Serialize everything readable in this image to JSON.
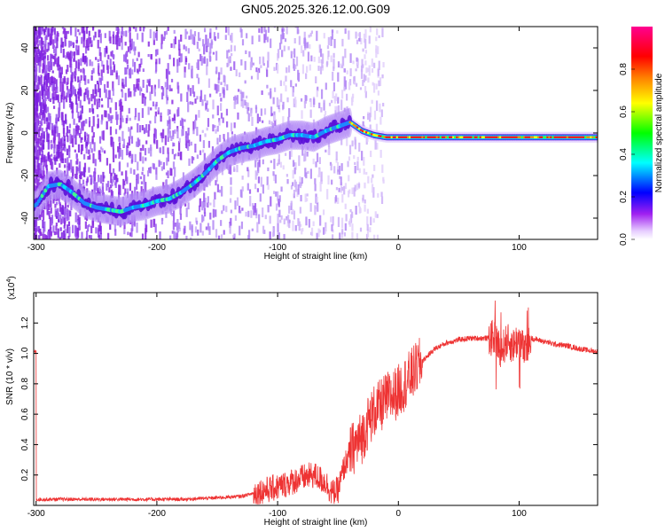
{
  "title": "GN05.2025.326.12.00.G09",
  "colors": {
    "scatter": "#7b1fe0",
    "scatter_light": "#c9a6f5",
    "snr_line": "#ee3333",
    "colorbar": [
      "#ffffff",
      "#a020f0",
      "#0000ff",
      "#00ffff",
      "#00ff00",
      "#ffff00",
      "#ff8000",
      "#ff0000",
      "#ff00a0"
    ]
  },
  "chart_data": [
    {
      "type": "heatmap",
      "title": "GN05.2025.326.12.00.G09",
      "xlabel": "Height of straight line (km)",
      "ylabel": "Frequency (Hz)",
      "xlim": [
        -302,
        165
      ],
      "ylim": [
        -50,
        50
      ],
      "xticks": [
        "-300",
        "-200",
        "-100",
        "0",
        "100"
      ],
      "xtick_values": [
        -300,
        -200,
        -100,
        0,
        100
      ],
      "yticks": [
        "-40",
        "-20",
        "0",
        "20",
        "40"
      ],
      "ytick_values": [
        -40,
        -20,
        0,
        20,
        40
      ],
      "grid": false,
      "ridge": {
        "x": [
          -300,
          -290,
          -280,
          -270,
          -260,
          -250,
          -240,
          -230,
          -220,
          -210,
          -200,
          -190,
          -180,
          -170,
          -160,
          -150,
          -140,
          -130,
          -120,
          -110,
          -100,
          -90,
          -80,
          -70,
          -60,
          -50,
          -40,
          -30,
          -20,
          -10,
          0,
          20,
          40,
          60,
          80,
          90,
          100,
          120,
          140,
          165
        ],
        "y": [
          -34,
          -25,
          -24,
          -28,
          -33,
          -35,
          -36,
          -37,
          -35,
          -34,
          -32,
          -31,
          -28,
          -24,
          -19,
          -13,
          -9,
          -7,
          -6,
          -4,
          -3,
          -1,
          -1,
          -2,
          1,
          3,
          5,
          1,
          -1,
          -2,
          -2,
          -2,
          -2,
          -2,
          -2,
          -2,
          -2,
          -2,
          -2,
          -2
        ]
      },
      "colorbar": {
        "label": "Normalized spectral amplitude",
        "range": [
          0,
          1
        ],
        "ticks": [
          "0.0",
          "0.2",
          "0.4",
          "0.6",
          "0.8"
        ],
        "tick_values": [
          0,
          0.2,
          0.4,
          0.6,
          0.8
        ]
      }
    },
    {
      "type": "line",
      "xlabel": "Height of straight line (km)",
      "ylabel": "SNR (10 * v/v)",
      "multiplier": "(x10",
      "multiplier_exp": "4",
      "xlim": [
        -302,
        165
      ],
      "ylim": [
        0,
        1.4
      ],
      "xticks": [
        "-300",
        "-200",
        "-100",
        "0",
        "100"
      ],
      "xtick_values": [
        -300,
        -200,
        -100,
        0,
        100
      ],
      "yticks": [
        "0.2",
        "0.4",
        "0.6",
        "0.8",
        "1.0",
        "1.2"
      ],
      "ytick_values": [
        0.2,
        0.4,
        0.6,
        0.8,
        1.0,
        1.2
      ],
      "grid": false,
      "series": [
        {
          "x": [
            -300,
            -260,
            -220,
            -180,
            -150,
            -130,
            -120,
            -110,
            -100,
            -90,
            -80,
            -70,
            -60,
            -55,
            -50,
            -45,
            -40,
            -35,
            -30,
            -25,
            -20,
            -15,
            -10,
            -5,
            0,
            5,
            10,
            20,
            30,
            40,
            50,
            60,
            70,
            80,
            85,
            90,
            95,
            100,
            105,
            110,
            120,
            130,
            140,
            150,
            165
          ],
          "y": [
            0.04,
            0.04,
            0.04,
            0.04,
            0.05,
            0.06,
            0.08,
            0.1,
            0.12,
            0.15,
            0.18,
            0.2,
            0.15,
            0.08,
            0.1,
            0.25,
            0.35,
            0.4,
            0.45,
            0.55,
            0.62,
            0.65,
            0.7,
            0.72,
            0.75,
            0.8,
            0.85,
            0.95,
            1.03,
            1.07,
            1.09,
            1.1,
            1.1,
            1.1,
            1.02,
            1.08,
            1.05,
            1.1,
            1.0,
            1.1,
            1.08,
            1.06,
            1.05,
            1.03,
            1.01
          ]
        }
      ]
    }
  ]
}
